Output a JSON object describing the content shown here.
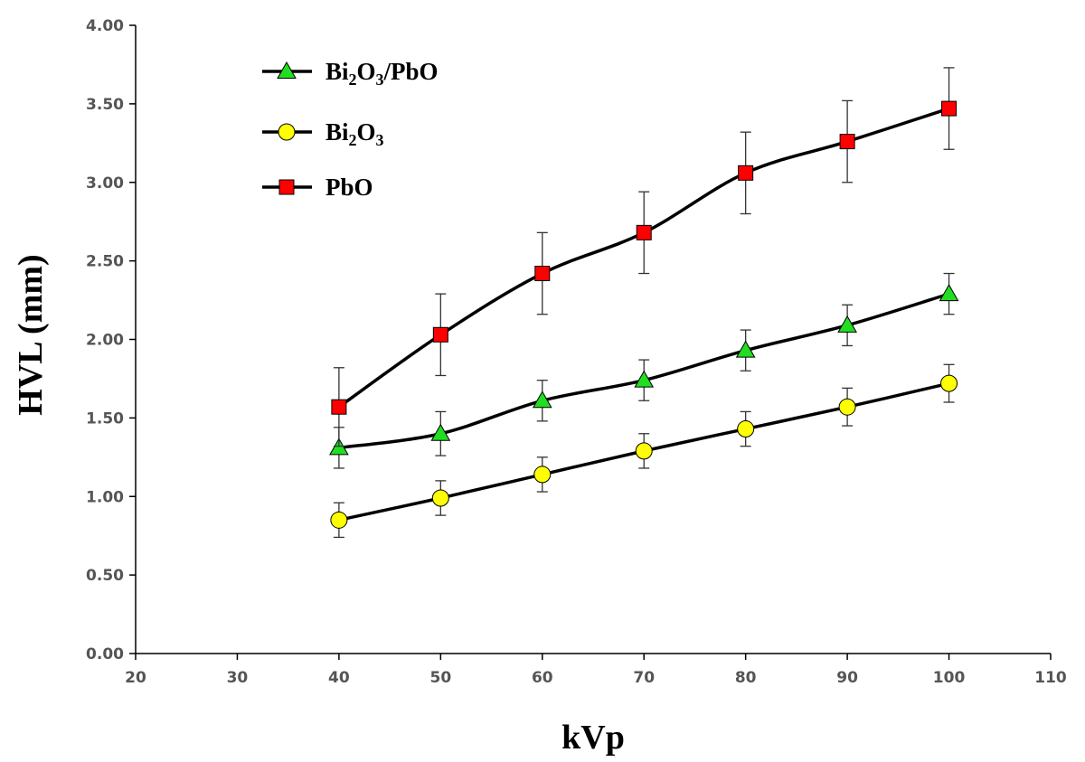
{
  "chart_data": {
    "type": "line",
    "title": "",
    "xlabel": "kVp",
    "ylabel": "HVL (mm)",
    "xlim": [
      20,
      110
    ],
    "ylim": [
      0,
      4
    ],
    "x_ticks": [
      20,
      30,
      40,
      50,
      60,
      70,
      80,
      90,
      100,
      110
    ],
    "x_tick_labels": [
      "20",
      "30",
      "40",
      "50",
      "60",
      "70",
      "80",
      "90",
      "100",
      "110"
    ],
    "y_ticks": [
      0,
      0.5,
      1,
      1.5,
      2,
      2.5,
      3,
      3.5,
      4
    ],
    "y_tick_labels": [
      "0.00",
      "0.50",
      "1.00",
      "1.50",
      "2.00",
      "2.50",
      "3.00",
      "3.50",
      "4.00"
    ],
    "grid": false,
    "legend_position": "top-left",
    "x": [
      40,
      50,
      60,
      70,
      80,
      90,
      100
    ],
    "series": [
      {
        "name": "Bi2O3/PbO",
        "legend_parts": [
          [
            "Bi",
            ""
          ],
          [
            "2",
            "sub"
          ],
          [
            "O",
            ""
          ],
          [
            "3",
            "sub"
          ],
          [
            "/PbO",
            ""
          ]
        ],
        "marker": "triangle",
        "color": "#22dd22",
        "values": [
          1.31,
          1.4,
          1.61,
          1.74,
          1.93,
          2.09,
          2.29
        ],
        "errors": [
          0.13,
          0.14,
          0.13,
          0.13,
          0.13,
          0.13,
          0.13
        ]
      },
      {
        "name": "Bi2O3",
        "legend_parts": [
          [
            "Bi",
            ""
          ],
          [
            "2",
            "sub"
          ],
          [
            "O",
            ""
          ],
          [
            "3",
            "sub"
          ]
        ],
        "marker": "circle",
        "color": "#ffff00",
        "values": [
          0.85,
          0.99,
          1.14,
          1.29,
          1.43,
          1.57,
          1.72
        ],
        "errors": [
          0.11,
          0.11,
          0.11,
          0.11,
          0.11,
          0.12,
          0.12
        ]
      },
      {
        "name": "PbO",
        "legend_parts": [
          [
            "PbO",
            ""
          ]
        ],
        "marker": "square",
        "color": "#ff0000",
        "values": [
          1.57,
          2.03,
          2.42,
          2.68,
          3.06,
          3.26,
          3.47
        ],
        "errors": [
          0.25,
          0.26,
          0.26,
          0.26,
          0.26,
          0.26,
          0.26
        ]
      }
    ]
  }
}
